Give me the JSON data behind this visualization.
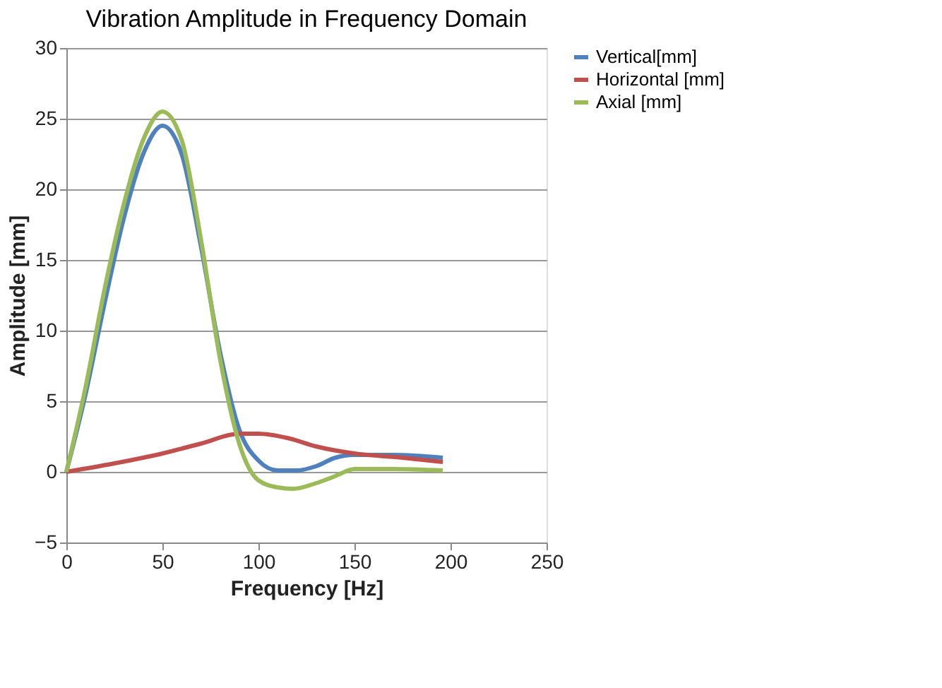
{
  "chart_data": {
    "type": "line",
    "title": "Vibration  Amplitude in Frequency Domain",
    "xlabel": "Frequency [Hz]",
    "ylabel": "Amplitude [mm]",
    "xlim": [
      0,
      250
    ],
    "xticks": [
      0,
      50,
      100,
      150,
      200,
      250
    ],
    "ylim": [
      -5,
      30
    ],
    "yticks": [
      -5,
      0,
      5,
      10,
      15,
      20,
      25,
      30
    ],
    "grid": "y",
    "legend": "right",
    "marker": "none",
    "line_style": "solid",
    "series": [
      {
        "name": "Vertical[mm]",
        "color": "#4f81bd",
        "x": [
          0,
          10,
          20,
          30,
          40,
          50,
          60,
          70,
          80,
          90,
          100,
          110,
          120,
          130,
          140,
          150,
          170,
          196
        ],
        "values": [
          0,
          5.5,
          12,
          18,
          22.5,
          24.5,
          22.5,
          16,
          8.5,
          3,
          0.8,
          0.1,
          0.1,
          0.4,
          1.0,
          1.2,
          1.2,
          1.0
        ]
      },
      {
        "name": "Horizontal [mm]",
        "color": "#c0504d",
        "x": [
          0,
          25,
          50,
          70,
          90,
          100,
          115,
          130,
          150,
          175,
          196
        ],
        "values": [
          0,
          0.6,
          1.3,
          2.0,
          2.7,
          2.7,
          2.4,
          1.8,
          1.3,
          1.0,
          0.7
        ]
      },
      {
        "name": "Axial [mm]",
        "color": "#9bbb59",
        "x": [
          0,
          10,
          20,
          30,
          40,
          50,
          60,
          70,
          80,
          90,
          100,
          110,
          118,
          130,
          140,
          150,
          170,
          196
        ],
        "values": [
          0,
          6,
          13,
          19,
          23.5,
          25.5,
          23.5,
          16.5,
          8,
          2,
          -0.6,
          -1.1,
          -1.2,
          -0.8,
          -0.3,
          0.2,
          0.2,
          0.1
        ]
      }
    ]
  }
}
